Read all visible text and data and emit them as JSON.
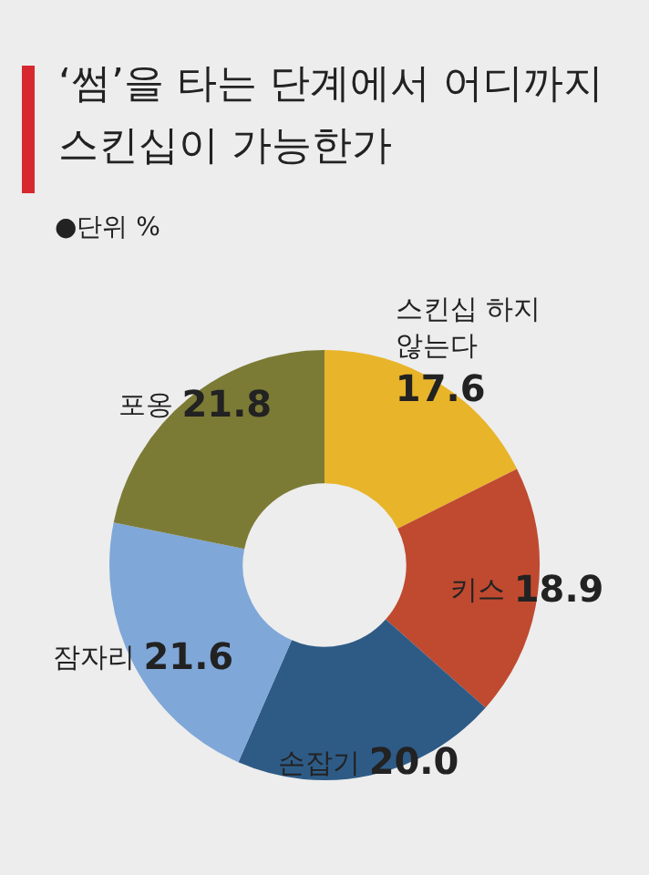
{
  "chart_data": {
    "type": "donut",
    "title": "‘썸’을 타는 단계에서 어디까지 스킨십이 가능한가",
    "subtitle": "●단위 %",
    "categories": [
      "스킨십 하지 않는다",
      "키스",
      "손잡기",
      "잠자리",
      "포옹"
    ],
    "values": [
      17.6,
      18.9,
      20.0,
      21.6,
      21.8
    ],
    "colors": [
      "#e8b42a",
      "#bf4a30",
      "#2e5b86",
      "#7fa7d8",
      "#7b7b36"
    ],
    "value_labels": [
      "17.6",
      "18.9",
      "20.0",
      "21.6",
      "21.8"
    ],
    "legend": false
  }
}
